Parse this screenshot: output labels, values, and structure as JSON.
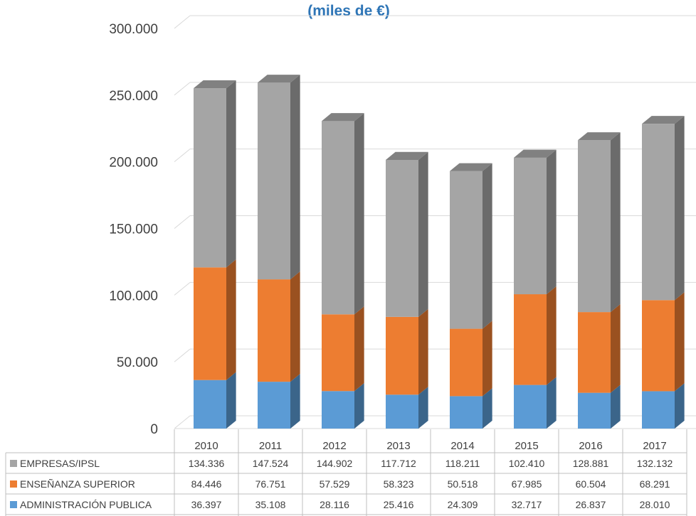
{
  "chart_data": {
    "type": "bar",
    "stacked": true,
    "three_d": true,
    "subtitle": "(miles de €)",
    "categories": [
      "2010",
      "2011",
      "2012",
      "2013",
      "2014",
      "2015",
      "2016",
      "2017"
    ],
    "yticks": [
      "0",
      "50.000",
      "100.000",
      "150.000",
      "200.000",
      "250.000",
      "300.000"
    ],
    "ylim": [
      0,
      300000
    ],
    "grid": true,
    "series": [
      {
        "name": "ADMINISTRACIÓN PUBLICA",
        "color": "#5b9bd5",
        "values": [
          36397,
          35108,
          28116,
          25416,
          24309,
          32717,
          26837,
          28010
        ],
        "labels": [
          "36.397",
          "35.108",
          "28.116",
          "25.416",
          "24.309",
          "32.717",
          "26.837",
          "28.010"
        ]
      },
      {
        "name": "ENSEÑANZA SUPERIOR",
        "color": "#ed7d31",
        "values": [
          84446,
          76751,
          57529,
          58323,
          50518,
          67985,
          60504,
          68291
        ],
        "labels": [
          "84.446",
          "76.751",
          "57.529",
          "58.323",
          "50.518",
          "67.985",
          "60.504",
          "68.291"
        ]
      },
      {
        "name": "EMPRESAS/IPSL",
        "color": "#a5a5a5",
        "values": [
          134336,
          147524,
          144902,
          117712,
          118211,
          102410,
          128881,
          132132
        ],
        "labels": [
          "134.336",
          "147.524",
          "144.902",
          "117.712",
          "118.211",
          "102.410",
          "128.881",
          "132.132"
        ]
      }
    ],
    "table_row_order": [
      "EMPRESAS/IPSL",
      "ENSEÑANZA SUPERIOR",
      "ADMINISTRACIÓN PUBLICA"
    ]
  }
}
